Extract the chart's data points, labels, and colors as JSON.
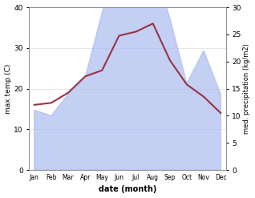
{
  "months": [
    "Jan",
    "Feb",
    "Mar",
    "Apr",
    "May",
    "Jun",
    "Jul",
    "Aug",
    "Sep",
    "Oct",
    "Nov",
    "Dec"
  ],
  "month_indices": [
    0,
    1,
    2,
    3,
    4,
    5,
    6,
    7,
    8,
    9,
    10,
    11
  ],
  "temp_max": [
    16.0,
    16.5,
    19.0,
    23.0,
    24.5,
    33.0,
    34.0,
    36.0,
    27.0,
    21.0,
    18.0,
    14.0
  ],
  "precipitation": [
    11,
    10,
    14,
    17,
    29,
    39,
    37,
    38,
    28,
    16,
    22,
    14
  ],
  "temp_color": "#993344",
  "precip_color": "#aabbee",
  "xlabel": "date (month)",
  "ylabel_left": "max temp (C)",
  "ylabel_right": "med. precipitation (kg/m2)",
  "ylim_left": [
    0,
    40
  ],
  "ylim_right": [
    0,
    30
  ],
  "yticks_left": [
    0,
    10,
    20,
    30,
    40
  ],
  "yticks_right": [
    0,
    5,
    10,
    15,
    20,
    25,
    30
  ],
  "bg_color": "#ffffff",
  "plot_bg_color": "#ffffff",
  "precip_scale_factor": 0.75
}
